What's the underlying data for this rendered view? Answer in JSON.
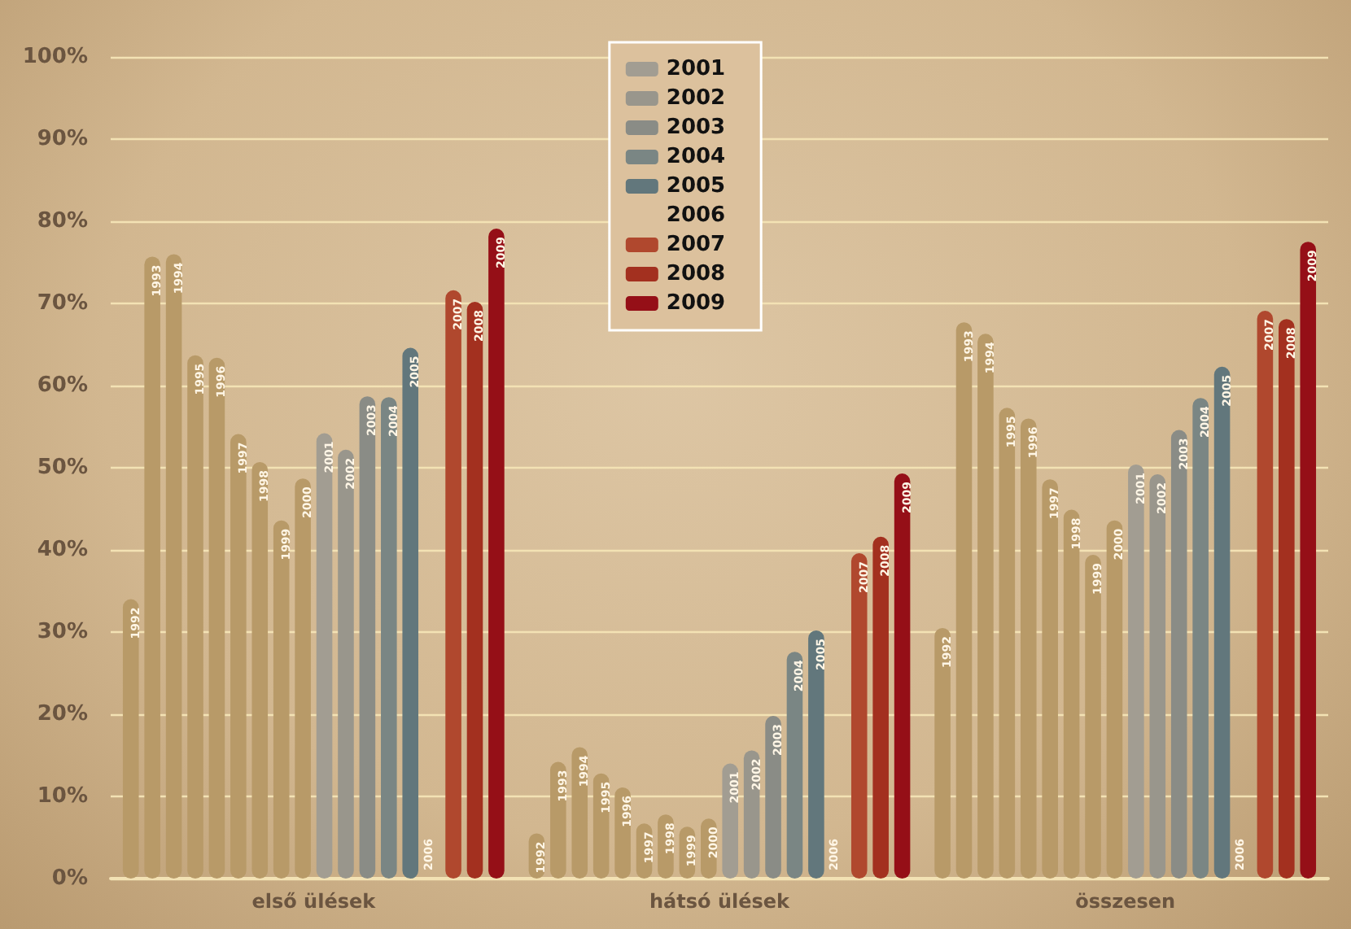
{
  "chart_data": {
    "type": "bar",
    "categories": [
      "első ülések",
      "hátsó ülések",
      "összesen"
    ],
    "ylim": [
      0,
      100
    ],
    "yticks": [
      {
        "value": 0,
        "label": "0%"
      },
      {
        "value": 10,
        "label": "10%"
      },
      {
        "value": 20,
        "label": "20%"
      },
      {
        "value": 30,
        "label": "30%"
      },
      {
        "value": 40,
        "label": "40%"
      },
      {
        "value": 50,
        "label": "50%"
      },
      {
        "value": 60,
        "label": "60%"
      },
      {
        "value": 70,
        "label": "70%"
      },
      {
        "value": 80,
        "label": "80%"
      },
      {
        "value": 90,
        "label": "90%"
      },
      {
        "value": 100,
        "label": "100%"
      }
    ],
    "grid": "y",
    "legend": "top",
    "series": [
      {
        "name": "1992",
        "color": "#b89a68",
        "values": [
          34,
          5.5,
          30.5
        ]
      },
      {
        "name": "1993",
        "color": "#b89a68",
        "values": [
          75.7,
          14.2,
          67.7
        ]
      },
      {
        "name": "1994",
        "color": "#b89a68",
        "values": [
          76,
          16,
          66.3
        ]
      },
      {
        "name": "1995",
        "color": "#b89a68",
        "values": [
          63.7,
          12.8,
          57.3
        ]
      },
      {
        "name": "1996",
        "color": "#b89a68",
        "values": [
          63.4,
          11.1,
          56
        ]
      },
      {
        "name": "1997",
        "color": "#b89a68",
        "values": [
          54.1,
          6.7,
          48.6
        ]
      },
      {
        "name": "1998",
        "color": "#b89a68",
        "values": [
          50.7,
          7.8,
          44.9
        ]
      },
      {
        "name": "1999",
        "color": "#b89a68",
        "values": [
          43.6,
          6.3,
          39.4
        ]
      },
      {
        "name": "2000",
        "color": "#b89a68",
        "values": [
          48.7,
          7.3,
          43.6
        ]
      },
      {
        "name": "2001",
        "color": "#a29d92",
        "values": [
          54.2,
          14,
          50.4
        ]
      },
      {
        "name": "2002",
        "color": "#99968c",
        "values": [
          52.2,
          15.6,
          49.2
        ]
      },
      {
        "name": "2003",
        "color": "#8a8c86",
        "values": [
          58.7,
          19.8,
          54.6
        ]
      },
      {
        "name": "2004",
        "color": "#7a8684",
        "values": [
          58.6,
          27.6,
          58.5
        ]
      },
      {
        "name": "2005",
        "color": "#62777c",
        "values": [
          64.6,
          30.2,
          62.3
        ]
      },
      {
        "name": "2006",
        "values": [
          0,
          0,
          0
        ]
      },
      {
        "name": "2007",
        "color": "#b0482e",
        "values": [
          71.6,
          39.6,
          69.1
        ]
      },
      {
        "name": "2008",
        "color": "#a3301f",
        "values": [
          70.2,
          41.6,
          68.1
        ]
      },
      {
        "name": "2009",
        "color": "#950f17",
        "values": [
          79.1,
          49.3,
          77.5
        ]
      }
    ]
  }
}
